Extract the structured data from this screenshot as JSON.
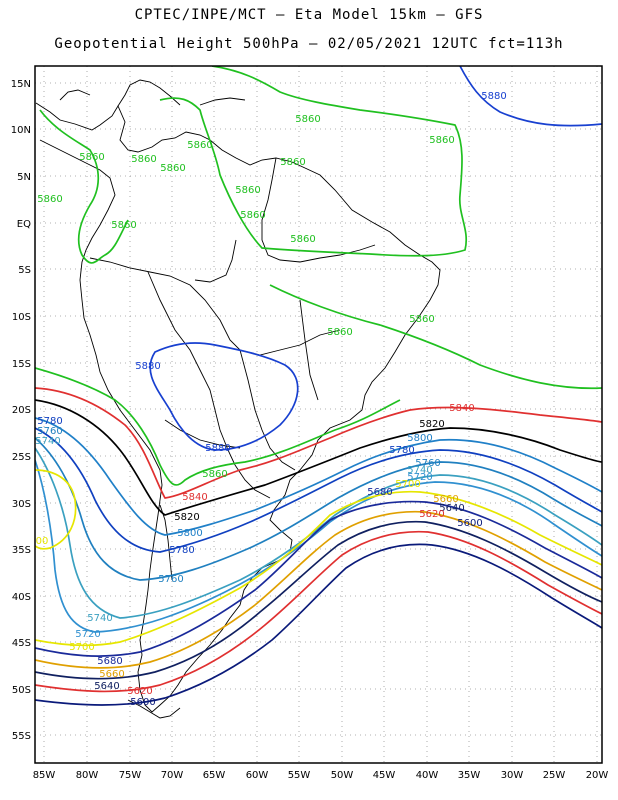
{
  "title_line1": "CPTEC/INPE/MCT –  Eta Model 15km – GFS",
  "title_line2": "Geopotential Height 500hPa – 02/05/2021 12UTC fct=113h",
  "lat_labels": [
    "15N",
    "10N",
    "5N",
    "EQ",
    "5S",
    "10S",
    "15S",
    "20S",
    "25S",
    "30S",
    "35S",
    "40S",
    "45S",
    "50S",
    "55S"
  ],
  "lon_labels": [
    "85W",
    "80W",
    "75W",
    "70W",
    "65W",
    "60W",
    "55W",
    "50W",
    "45W",
    "40W",
    "35W",
    "30W",
    "25W",
    "20W"
  ],
  "contour_colors": {
    "5580": "#000060",
    "5600": "#0a1a7a",
    "5620": "#e03030",
    "5640": "#102060",
    "5660": "#e0a000",
    "5680": "#1a2a9a",
    "5700": "#e6e600",
    "5720": "#3090d0",
    "5740": "#3aa0c0",
    "5760": "#2080c0",
    "5780": "#1040c0",
    "5800": "#2080c8",
    "5820": "#000000",
    "5840": "#e03030",
    "5860": "#20c020",
    "5880": "#1840d0"
  },
  "contour_labels": [
    {
      "text": "5880",
      "color": "#1840d0"
    },
    {
      "text": "5860",
      "color": "#20c020"
    },
    {
      "text": "5860",
      "color": "#20c020"
    },
    {
      "text": "5860",
      "color": "#20c020"
    },
    {
      "text": "5860",
      "color": "#20c020"
    },
    {
      "text": "5860",
      "color": "#20c020"
    },
    {
      "text": "5860",
      "color": "#20c020"
    },
    {
      "text": "5860",
      "color": "#20c020"
    },
    {
      "text": "5860",
      "color": "#20c020"
    },
    {
      "text": "5860",
      "color": "#20c020"
    },
    {
      "text": "5860",
      "color": "#20c020"
    },
    {
      "text": "5860",
      "color": "#20c020"
    },
    {
      "text": "5860",
      "color": "#20c020"
    },
    {
      "text": "5860",
      "color": "#20c020"
    },
    {
      "text": "5860",
      "color": "#20c020"
    },
    {
      "text": "5880",
      "color": "#1840d0"
    },
    {
      "text": "5880",
      "color": "#1840d0"
    },
    {
      "text": "5860",
      "color": "#20c020"
    },
    {
      "text": "5840",
      "color": "#e03030"
    },
    {
      "text": "5820",
      "color": "#000000"
    },
    {
      "text": "5800",
      "color": "#2080c8"
    },
    {
      "text": "5780",
      "color": "#1040c0"
    },
    {
      "text": "5760",
      "color": "#2080c0"
    },
    {
      "text": "5740",
      "color": "#3aa0c0"
    },
    {
      "text": "5720",
      "color": "#3090d0"
    },
    {
      "text": "5700",
      "color": "#e6e600"
    },
    {
      "text": "5680",
      "color": "#1a2a9a"
    },
    {
      "text": "5660",
      "color": "#e0a000"
    },
    {
      "text": "5640",
      "color": "#102060"
    },
    {
      "text": "5620",
      "color": "#e03030"
    },
    {
      "text": "5600",
      "color": "#0a1a7a"
    },
    {
      "text": "5840",
      "color": "#e03030"
    },
    {
      "text": "5820",
      "color": "#000000"
    },
    {
      "text": "5800",
      "color": "#2080c8"
    },
    {
      "text": "5780",
      "color": "#1040c0"
    },
    {
      "text": "5760",
      "color": "#2080c0"
    },
    {
      "text": "5740",
      "color": "#3aa0c0"
    },
    {
      "text": "5720",
      "color": "#3090d0"
    },
    {
      "text": "5700",
      "color": "#e6e600"
    },
    {
      "text": "5680",
      "color": "#1a2a9a"
    },
    {
      "text": "5660",
      "color": "#e0a000"
    },
    {
      "text": "5640",
      "color": "#102060"
    },
    {
      "text": "5620",
      "color": "#e03030"
    },
    {
      "text": "5600",
      "color": "#0a1a7a"
    },
    {
      "text": "5780",
      "color": "#1040c0"
    },
    {
      "text": "5760",
      "color": "#2080c0"
    },
    {
      "text": "5740",
      "color": "#3aa0c0"
    },
    {
      "text": "00",
      "color": "#e6e600"
    }
  ]
}
